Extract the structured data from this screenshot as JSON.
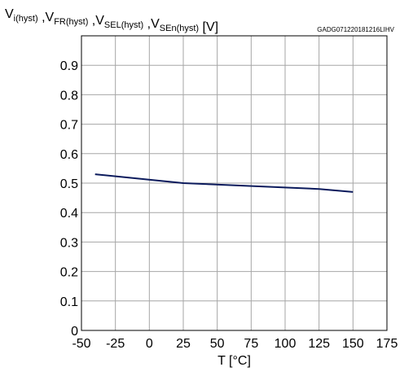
{
  "chart_data": {
    "type": "line",
    "ylabel_parts": [
      {
        "main": "V",
        "sub": "i(hyst)"
      },
      {
        "sep": " ,"
      },
      {
        "main": "V",
        "sub": "FR(hyst)"
      },
      {
        "sep": " ,"
      },
      {
        "main": "V",
        "sub": "SEL(hyst)"
      },
      {
        "sep": " ,"
      },
      {
        "main": "V",
        "sub": "SEn(hyst)"
      },
      {
        "sep": " [V]"
      }
    ],
    "figure_code": "GADG071220181216LIHV",
    "xlabel": "T [°C]",
    "xlim": [
      -50,
      175
    ],
    "ylim": [
      0,
      1.0
    ],
    "x_ticks": [
      "-50",
      "-25",
      "0",
      "25",
      "50",
      "75",
      "100",
      "125",
      "150",
      "175"
    ],
    "y_ticks": [
      "0",
      "0.1",
      "0.2",
      "0.3",
      "0.4",
      "0.5",
      "0.6",
      "0.7",
      "0.8",
      "0.9"
    ],
    "grid": true,
    "line_color": "#0b1a5c",
    "series": [
      {
        "x": [
          -40,
          25,
          125,
          150
        ],
        "y": [
          0.53,
          0.5,
          0.48,
          0.47
        ]
      }
    ]
  }
}
